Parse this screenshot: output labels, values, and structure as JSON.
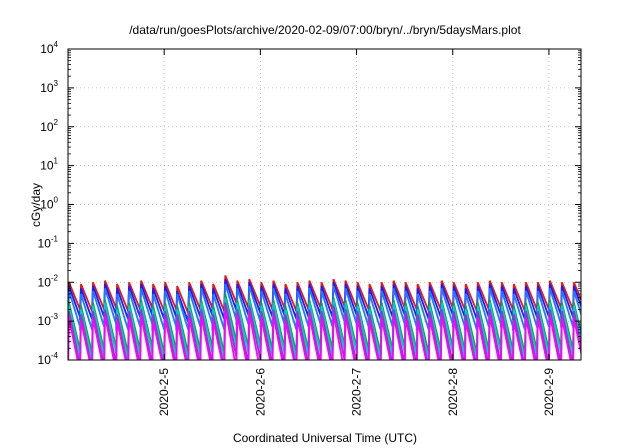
{
  "chart_data": {
    "type": "line",
    "title": "/data/run/goesPlots/archive/2020-02-09/07:00/bryn/../bryn/5daysMars.plot",
    "xlabel": "Coordinated Universal Time (UTC)",
    "ylabel": "cGy/day",
    "yscale": "log",
    "ylim": [
      0.0001,
      10000
    ],
    "y_ticks": [
      {
        "base": "10",
        "exp": "-4",
        "value": 0.0001
      },
      {
        "base": "10",
        "exp": "-3",
        "value": 0.001
      },
      {
        "base": "10",
        "exp": "-2",
        "value": 0.01
      },
      {
        "base": "10",
        "exp": "-1",
        "value": 0.1
      },
      {
        "base": "10",
        "exp": "0",
        "value": 1
      },
      {
        "base": "10",
        "exp": "1",
        "value": 10
      },
      {
        "base": "10",
        "exp": "2",
        "value": 100
      },
      {
        "base": "10",
        "exp": "3",
        "value": 1000
      },
      {
        "base": "10",
        "exp": "4",
        "value": 10000
      }
    ],
    "x_ticks": [
      "2020-2-5",
      "2020-2-6",
      "2020-2-7",
      "2020-2-8",
      "2020-2-9"
    ],
    "xlim": [
      "2020-02-04",
      "2020-02-09 08:00"
    ],
    "grid": true,
    "sawtooth": {
      "period_hours": 3,
      "start": "2020-02-04",
      "end": "2020-02-09 08:00"
    },
    "series": [
      {
        "color": "#e41a1c",
        "peaks": [
          0.01,
          0.009,
          0.01,
          0.011,
          0.009,
          0.01,
          0.011,
          0.009,
          0.01,
          0.008,
          0.01,
          0.011,
          0.009,
          0.015,
          0.011,
          0.012,
          0.01,
          0.011,
          0.009,
          0.01,
          0.011,
          0.01,
          0.012,
          0.011,
          0.01,
          0.009,
          0.01,
          0.011,
          0.01,
          0.009,
          0.01,
          0.011,
          0.01,
          0.009,
          0.01,
          0.011,
          0.01,
          0.009,
          0.01,
          0.01,
          0.011,
          0.01
        ],
        "decay": 0.2
      },
      {
        "color": "#1a1aff",
        "peaks": [
          0.008,
          0.007,
          0.008,
          0.009,
          0.007,
          0.008,
          0.009,
          0.007,
          0.008,
          0.006,
          0.008,
          0.009,
          0.007,
          0.012,
          0.009,
          0.01,
          0.008,
          0.009,
          0.007,
          0.008,
          0.009,
          0.008,
          0.01,
          0.009,
          0.008,
          0.007,
          0.008,
          0.009,
          0.008,
          0.007,
          0.008,
          0.009,
          0.008,
          0.007,
          0.008,
          0.009,
          0.008,
          0.007,
          0.008,
          0.008,
          0.009,
          0.008
        ],
        "decay": 0.16
      },
      {
        "color": "#1f78ff",
        "peaks": [
          0.006,
          0.005,
          0.006,
          0.007,
          0.005,
          0.006,
          0.007,
          0.005,
          0.006,
          0.005,
          0.006,
          0.007,
          0.005,
          0.009,
          0.007,
          0.008,
          0.006,
          0.007,
          0.005,
          0.006,
          0.007,
          0.006,
          0.008,
          0.007,
          0.006,
          0.005,
          0.006,
          0.007,
          0.006,
          0.005,
          0.006,
          0.007,
          0.006,
          0.005,
          0.006,
          0.007,
          0.006,
          0.005,
          0.006,
          0.006,
          0.007,
          0.006
        ],
        "decay": 0.12
      },
      {
        "color": "#00aa44",
        "peaks": [
          0.003,
          0.0025,
          0.003,
          0.0035,
          0.0025,
          0.003,
          0.0035,
          0.0025,
          0.003,
          0.0025,
          0.003,
          0.0035,
          0.0025,
          0.005,
          0.0035,
          0.004,
          0.003,
          0.0035,
          0.0025,
          0.003,
          0.0035,
          0.003,
          0.004,
          0.0035,
          0.003,
          0.0025,
          0.003,
          0.0035,
          0.003,
          0.0025,
          0.003,
          0.0035,
          0.003,
          0.0025,
          0.003,
          0.0035,
          0.003,
          0.0025,
          0.003,
          0.003,
          0.0035,
          0.003
        ],
        "decay": 0.06
      },
      {
        "color": "#00cccc",
        "peaks": [
          0.0025,
          0.002,
          0.0025,
          0.003,
          0.002,
          0.0025,
          0.003,
          0.002,
          0.0025,
          0.002,
          0.0025,
          0.003,
          0.002,
          0.004,
          0.003,
          0.0035,
          0.0025,
          0.003,
          0.002,
          0.0025,
          0.003,
          0.0025,
          0.0035,
          0.003,
          0.0025,
          0.002,
          0.0025,
          0.003,
          0.0025,
          0.002,
          0.0025,
          0.003,
          0.0025,
          0.002,
          0.0025,
          0.003,
          0.0025,
          0.002,
          0.0025,
          0.0025,
          0.003,
          0.0025
        ],
        "decay": 0.05
      },
      {
        "color": "#9933cc",
        "peaks": [
          0.0018,
          0.0015,
          0.0018,
          0.002,
          0.0015,
          0.0018,
          0.002,
          0.0015,
          0.0018,
          0.0015,
          0.0018,
          0.002,
          0.0015,
          0.003,
          0.002,
          0.0025,
          0.0018,
          0.002,
          0.0015,
          0.0018,
          0.002,
          0.0018,
          0.0025,
          0.002,
          0.0018,
          0.0015,
          0.0018,
          0.002,
          0.0018,
          0.0015,
          0.0018,
          0.002,
          0.0018,
          0.0015,
          0.0018,
          0.002,
          0.0018,
          0.0015,
          0.0018,
          0.0018,
          0.002,
          0.0018
        ],
        "decay": 0.04
      },
      {
        "color": "#ff00ff",
        "peaks": [
          0.0012,
          0.001,
          0.0012,
          0.0014,
          0.001,
          0.0012,
          0.0014,
          0.001,
          0.0012,
          0.001,
          0.0012,
          0.0014,
          0.001,
          0.002,
          0.0014,
          0.0016,
          0.0012,
          0.0014,
          0.001,
          0.0012,
          0.0014,
          0.0012,
          0.0016,
          0.0014,
          0.0012,
          0.001,
          0.0012,
          0.0014,
          0.0012,
          0.001,
          0.0012,
          0.0014,
          0.0012,
          0.001,
          0.0012,
          0.0014,
          0.0012,
          0.001,
          0.0012,
          0.0012,
          0.0014,
          0.0012
        ],
        "decay": 0.03
      }
    ]
  }
}
